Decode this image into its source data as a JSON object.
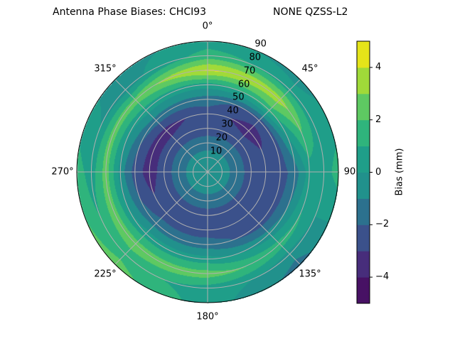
{
  "chart_data": {
    "type": "heatmap",
    "subtype": "polar-filled-contour",
    "title_left": "Antenna Phase Biases: CHCI93",
    "title_right": "NONE QZSS-L2",
    "azimuth_labels": [
      "0°",
      "45°",
      "90",
      "135°",
      "180°",
      "225°",
      "270°",
      "315°"
    ],
    "azimuth_direction": "clockwise from north",
    "radial_labels": [
      "10",
      "20",
      "30",
      "40",
      "50",
      "60",
      "70",
      "80",
      "90"
    ],
    "radial_range": [
      0,
      90
    ],
    "grid": true,
    "azimuths": [
      0,
      45,
      90,
      135,
      180,
      225,
      270,
      315
    ],
    "radii": [
      0,
      10,
      20,
      30,
      40,
      50,
      60,
      70,
      80,
      90
    ],
    "values_by_azimuth": [
      [
        -0.5,
        -0.5,
        -1.5,
        -2.5,
        -2.5,
        -1.5,
        0.5,
        4.2,
        1.5,
        0.5
      ],
      [
        -0.5,
        -0.5,
        -1.5,
        -2.5,
        -3.5,
        -2.5,
        1.5,
        3.5,
        0.5,
        -0.5
      ],
      [
        -0.5,
        -0.5,
        -1.5,
        -2.5,
        -2.5,
        -2.5,
        -1.5,
        0.5,
        0.5,
        1.5
      ],
      [
        -0.5,
        -0.5,
        -1.5,
        -2.5,
        -2.5,
        -2.5,
        -0.5,
        1.5,
        -0.5,
        -1.5
      ],
      [
        -0.5,
        -0.5,
        -1.5,
        -2.5,
        -2.5,
        -1.5,
        0.5,
        2.5,
        0.5,
        0.5
      ],
      [
        -0.5,
        -0.5,
        -1.5,
        -2.5,
        -2.5,
        -1.5,
        0.5,
        2.5,
        1.5,
        2.5
      ],
      [
        -0.5,
        -0.5,
        -1.5,
        -2.5,
        -3.5,
        -2.5,
        -0.5,
        2.5,
        0.5,
        1.5
      ],
      [
        -0.5,
        -0.5,
        -1.5,
        -2.5,
        -3.5,
        -1.5,
        0.5,
        2.5,
        -0.5,
        -0.5
      ]
    ],
    "colorbar": {
      "label": "Bias (mm)",
      "range": [
        -5,
        5
      ],
      "levels": [
        -5,
        -4,
        -3,
        -2,
        -1,
        0,
        1,
        2,
        3,
        4,
        5
      ],
      "ticks": [
        "4",
        "2",
        "0",
        "−2",
        "−4"
      ],
      "tick_values": [
        4,
        2,
        0,
        -2,
        -4
      ],
      "colormap": "viridis",
      "colors": [
        "#471164",
        "#472d7b",
        "#3b518b",
        "#2c718e",
        "#21918c",
        "#1f9e89",
        "#2fb47c",
        "#5ec962",
        "#a0da39",
        "#e5e419"
      ]
    }
  }
}
